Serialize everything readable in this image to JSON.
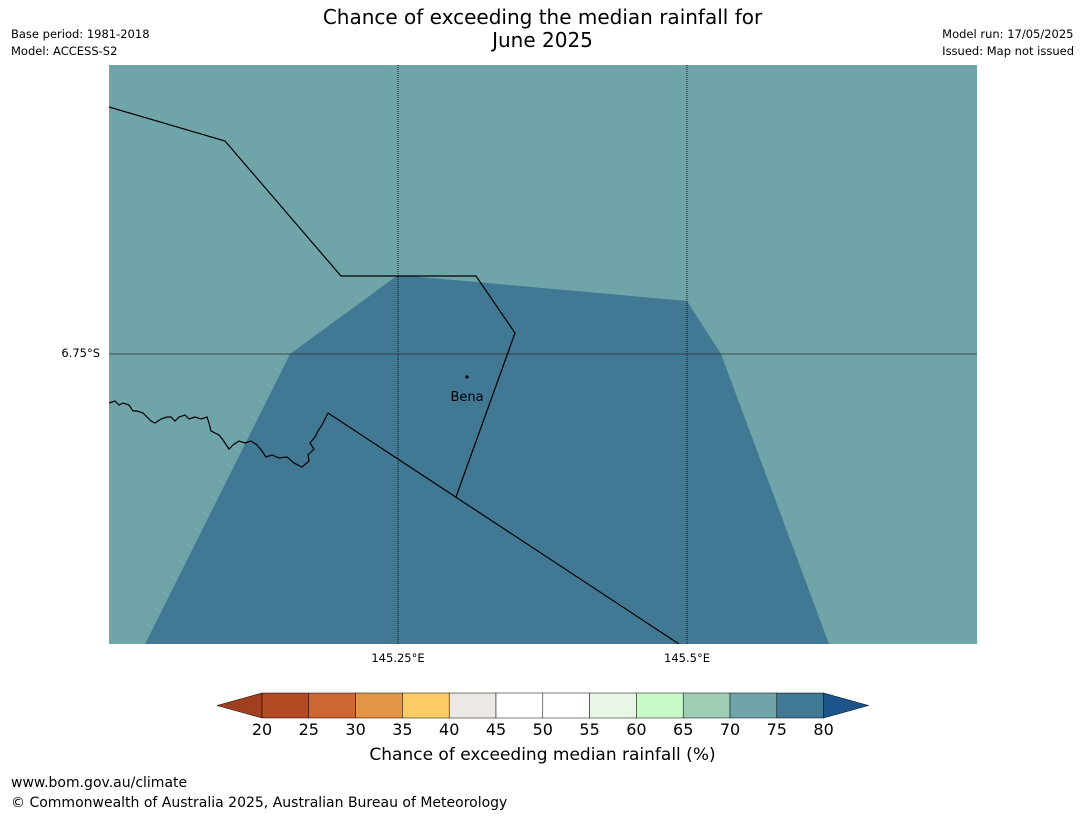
{
  "title": {
    "line1": "Chance of exceeding the median rainfall for",
    "line2": "June 2025"
  },
  "meta_left": {
    "base_period": "Base period: 1981-2018",
    "model": "Model: ACCESS-S2"
  },
  "meta_right": {
    "model_run": "Model run: 17/05/2025",
    "issued": "Issued: Map not issued"
  },
  "map": {
    "background_color": "#6fa4a8",
    "region_color": "#417995",
    "region_value_range": "75-80",
    "background_value_range": "70-75",
    "place_label": "Bena",
    "lat_label": "6.75°S",
    "lon_labels": [
      "145.25°E",
      "145.5°E"
    ]
  },
  "colorbar": {
    "ticks": [
      "20",
      "25",
      "30",
      "35",
      "40",
      "45",
      "50",
      "55",
      "60",
      "65",
      "70",
      "75",
      "80"
    ],
    "colors": [
      "#a0401f",
      "#b24a24",
      "#cc6633",
      "#e39444",
      "#fecb66",
      "#ece8e3",
      "#ffffff",
      "#ffffff",
      "#e8f5e7",
      "#c8fac8",
      "#9ecfb6",
      "#6fa4a8",
      "#417995",
      "#1c548c"
    ],
    "label": "Chance of exceeding median rainfall (%)"
  },
  "footer": {
    "url": "www.bom.gov.au/climate",
    "copyright": "© Commonwealth of Australia 2025, Australian Bureau of Meteorology"
  }
}
